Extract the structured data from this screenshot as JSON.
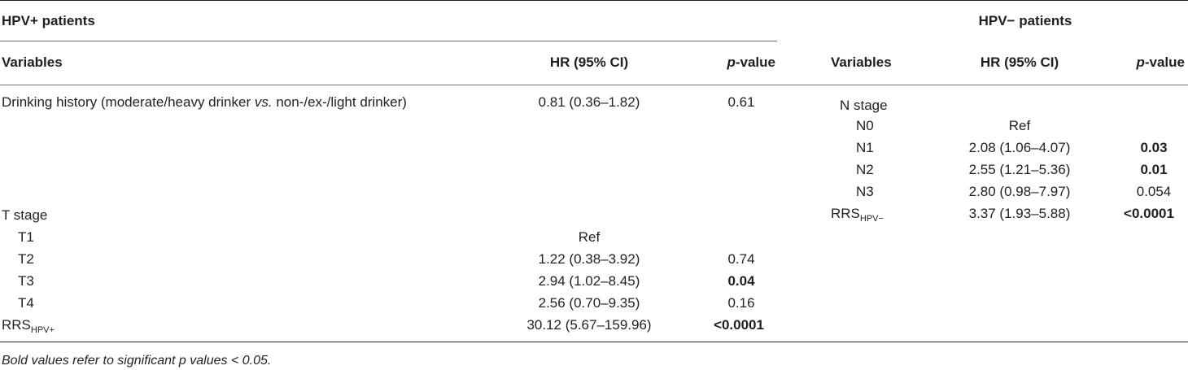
{
  "left": {
    "group_title": "HPV+ patients",
    "headers": {
      "variables": "Variables",
      "hr": "HR (95% CI)",
      "p_prefix": "p",
      "p_suffix": "-value"
    },
    "drinking": {
      "label_a": "Drinking history (moderate/heavy drinker ",
      "label_vs": "vs.",
      "label_b": " non-/ex-/light drinker)",
      "hr": "0.81 (0.36–1.82)",
      "p": "0.61"
    },
    "t_stage": {
      "label": "T stage",
      "rows": [
        {
          "name": "T1",
          "hr": "Ref",
          "p": ""
        },
        {
          "name": "T2",
          "hr": "1.22 (0.38–3.92)",
          "p": "0.74"
        },
        {
          "name": "T3",
          "hr": "2.94 (1.02–8.45)",
          "p": "0.04"
        },
        {
          "name": "T4",
          "hr": "2.56 (0.70–9.35)",
          "p": "0.16"
        }
      ]
    },
    "rrs": {
      "base": "RRS",
      "sub": "HPV+",
      "hr": "30.12 (5.67–159.96)",
      "p": "<0.0001"
    }
  },
  "right": {
    "group_title": "HPV− patients",
    "headers": {
      "variables": "Variables",
      "hr": "HR (95% CI)",
      "p_prefix": "p",
      "p_suffix": "-value"
    },
    "n_stage": {
      "label": "N stage",
      "rows": [
        {
          "name": "N0",
          "hr": "Ref",
          "p": ""
        },
        {
          "name": "N1",
          "hr": "2.08 (1.06–4.07)",
          "p": "0.03"
        },
        {
          "name": "N2",
          "hr": "2.55 (1.21–5.36)",
          "p": "0.01"
        },
        {
          "name": "N3",
          "hr": "2.80 (0.98–7.97)",
          "p": "0.054"
        }
      ]
    },
    "rrs": {
      "base": "RRS",
      "sub": "HPV−",
      "hr": "3.37 (1.93–5.88)",
      "p": "<0.0001"
    }
  },
  "footnote": "Bold values refer to significant p values < 0.05."
}
